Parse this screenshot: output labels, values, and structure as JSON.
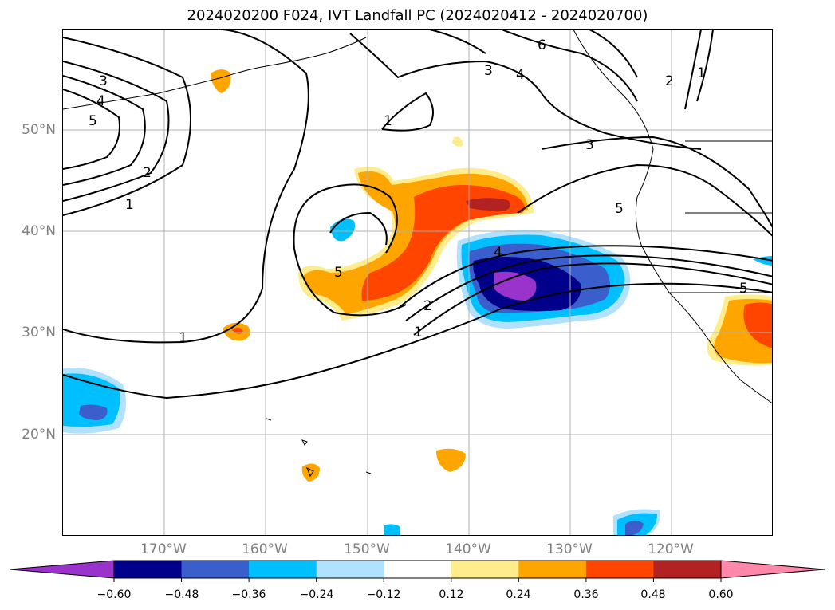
{
  "title": "2024020200 F024, IVT Landfall PC (2024020412 - 2024020700)",
  "lat_labels": [
    "50°N",
    "40°N",
    "30°N",
    "20°N"
  ],
  "lon_labels": [
    "170°W",
    "160°W",
    "150°W",
    "140°W",
    "130°W",
    "120°W"
  ],
  "colorbar": {
    "ticks": [
      "−0.60",
      "−0.48",
      "−0.36",
      "−0.24",
      "−0.12",
      "0.12",
      "0.24",
      "0.36",
      "0.48",
      "0.60"
    ],
    "colors": [
      "#9933cc",
      "#00008b",
      "#3a5fcd",
      "#00bfff",
      "#b0e2ff",
      "#ffffff",
      "#ffec8b",
      "#ffa500",
      "#ff4500",
      "#b22222",
      "#ff88aa"
    ]
  },
  "contour_labels": [
    "1",
    "2",
    "3",
    "4",
    "5",
    "6"
  ]
}
